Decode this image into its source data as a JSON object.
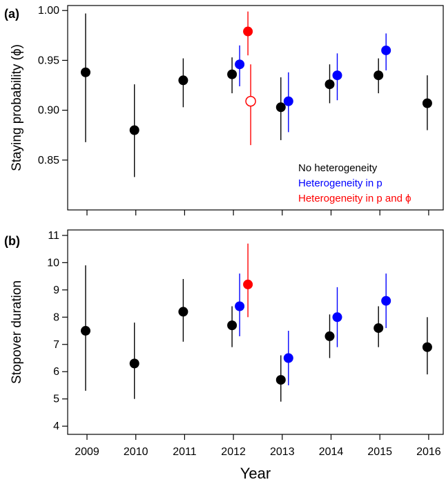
{
  "chart_data": [
    {
      "panel_label": "(a)",
      "type": "scatter",
      "ylabel": "Staying probability (ϕ)",
      "ylim": [
        0.8,
        1.005
      ],
      "yticks": [
        0.85,
        0.9,
        0.95,
        1.0
      ],
      "ytick_labels": [
        "0.85",
        "0.90",
        "0.95",
        "1.00"
      ],
      "x_ticks": [
        "2009",
        "2010",
        "2011",
        "2012",
        "2013",
        "2014",
        "2015",
        "2016"
      ],
      "legend": {
        "placement": "bottom-right",
        "entries": [
          {
            "label": "No heterogeneity",
            "color": "#000000"
          },
          {
            "label": "Heterogeneity in p",
            "color": "#0000ff"
          },
          {
            "label": "Heterogeneity in p and ϕ",
            "color": "#ff0000"
          }
        ]
      },
      "series": [
        {
          "model": "none",
          "color": "#000000",
          "points": [
            {
              "year": 2009,
              "y": 0.938,
              "lo": 0.868,
              "hi": 0.997
            },
            {
              "year": 2010,
              "y": 0.88,
              "lo": 0.833,
              "hi": 0.926
            },
            {
              "year": 2011,
              "y": 0.93,
              "lo": 0.903,
              "hi": 0.952
            },
            {
              "year": 2012,
              "y": 0.936,
              "lo": 0.917,
              "hi": 0.953
            },
            {
              "year": 2013,
              "y": 0.903,
              "lo": 0.87,
              "hi": 0.933
            },
            {
              "year": 2014,
              "y": 0.926,
              "lo": 0.907,
              "hi": 0.946
            },
            {
              "year": 2015,
              "y": 0.935,
              "lo": 0.917,
              "hi": 0.952
            },
            {
              "year": 2016,
              "y": 0.907,
              "lo": 0.88,
              "hi": 0.935
            }
          ]
        },
        {
          "model": "p",
          "color": "#0000ff",
          "points": [
            {
              "year": 2012,
              "y": 0.946,
              "lo": 0.924,
              "hi": 0.965
            },
            {
              "year": 2013,
              "y": 0.909,
              "lo": 0.878,
              "hi": 0.938
            },
            {
              "year": 2014,
              "y": 0.935,
              "lo": 0.91,
              "hi": 0.957
            },
            {
              "year": 2015,
              "y": 0.96,
              "lo": 0.94,
              "hi": 0.977
            }
          ]
        },
        {
          "model": "p_phi",
          "color": "#ff0000",
          "points": [
            {
              "year": 2012,
              "y": 0.979,
              "lo": 0.955,
              "hi": 0.999
            },
            {
              "year": 2012,
              "y": 0.909,
              "lo": 0.865,
              "hi": 0.946,
              "open": true
            }
          ]
        }
      ]
    },
    {
      "panel_label": "(b)",
      "type": "scatter",
      "ylabel": "Stopover duration",
      "xlabel": "Year",
      "ylim": [
        3.7,
        11.2
      ],
      "yticks": [
        4,
        5,
        6,
        7,
        8,
        9,
        10,
        11
      ],
      "ytick_labels": [
        "4",
        "5",
        "6",
        "7",
        "8",
        "9",
        "10",
        "11"
      ],
      "x_ticks": [
        "2009",
        "2010",
        "2011",
        "2012",
        "2013",
        "2014",
        "2015",
        "2016"
      ],
      "series": [
        {
          "model": "none",
          "color": "#000000",
          "points": [
            {
              "year": 2009,
              "y": 7.5,
              "lo": 5.3,
              "hi": 9.9
            },
            {
              "year": 2010,
              "y": 6.3,
              "lo": 5.0,
              "hi": 7.8
            },
            {
              "year": 2011,
              "y": 8.2,
              "lo": 7.1,
              "hi": 9.4
            },
            {
              "year": 2012,
              "y": 7.7,
              "lo": 6.9,
              "hi": 8.4
            },
            {
              "year": 2013,
              "y": 5.7,
              "lo": 4.9,
              "hi": 6.6
            },
            {
              "year": 2014,
              "y": 7.3,
              "lo": 6.5,
              "hi": 8.1
            },
            {
              "year": 2015,
              "y": 7.6,
              "lo": 6.9,
              "hi": 8.4
            },
            {
              "year": 2016,
              "y": 6.9,
              "lo": 5.9,
              "hi": 8.0
            }
          ]
        },
        {
          "model": "p",
          "color": "#0000ff",
          "points": [
            {
              "year": 2012,
              "y": 8.4,
              "lo": 7.3,
              "hi": 9.6
            },
            {
              "year": 2013,
              "y": 6.5,
              "lo": 5.5,
              "hi": 7.5
            },
            {
              "year": 2014,
              "y": 8.0,
              "lo": 6.9,
              "hi": 9.1
            },
            {
              "year": 2015,
              "y": 8.6,
              "lo": 7.6,
              "hi": 9.6
            }
          ]
        },
        {
          "model": "p_phi",
          "color": "#ff0000",
          "points": [
            {
              "year": 2012,
              "y": 9.2,
              "lo": 8.0,
              "hi": 10.7
            }
          ]
        }
      ]
    }
  ]
}
